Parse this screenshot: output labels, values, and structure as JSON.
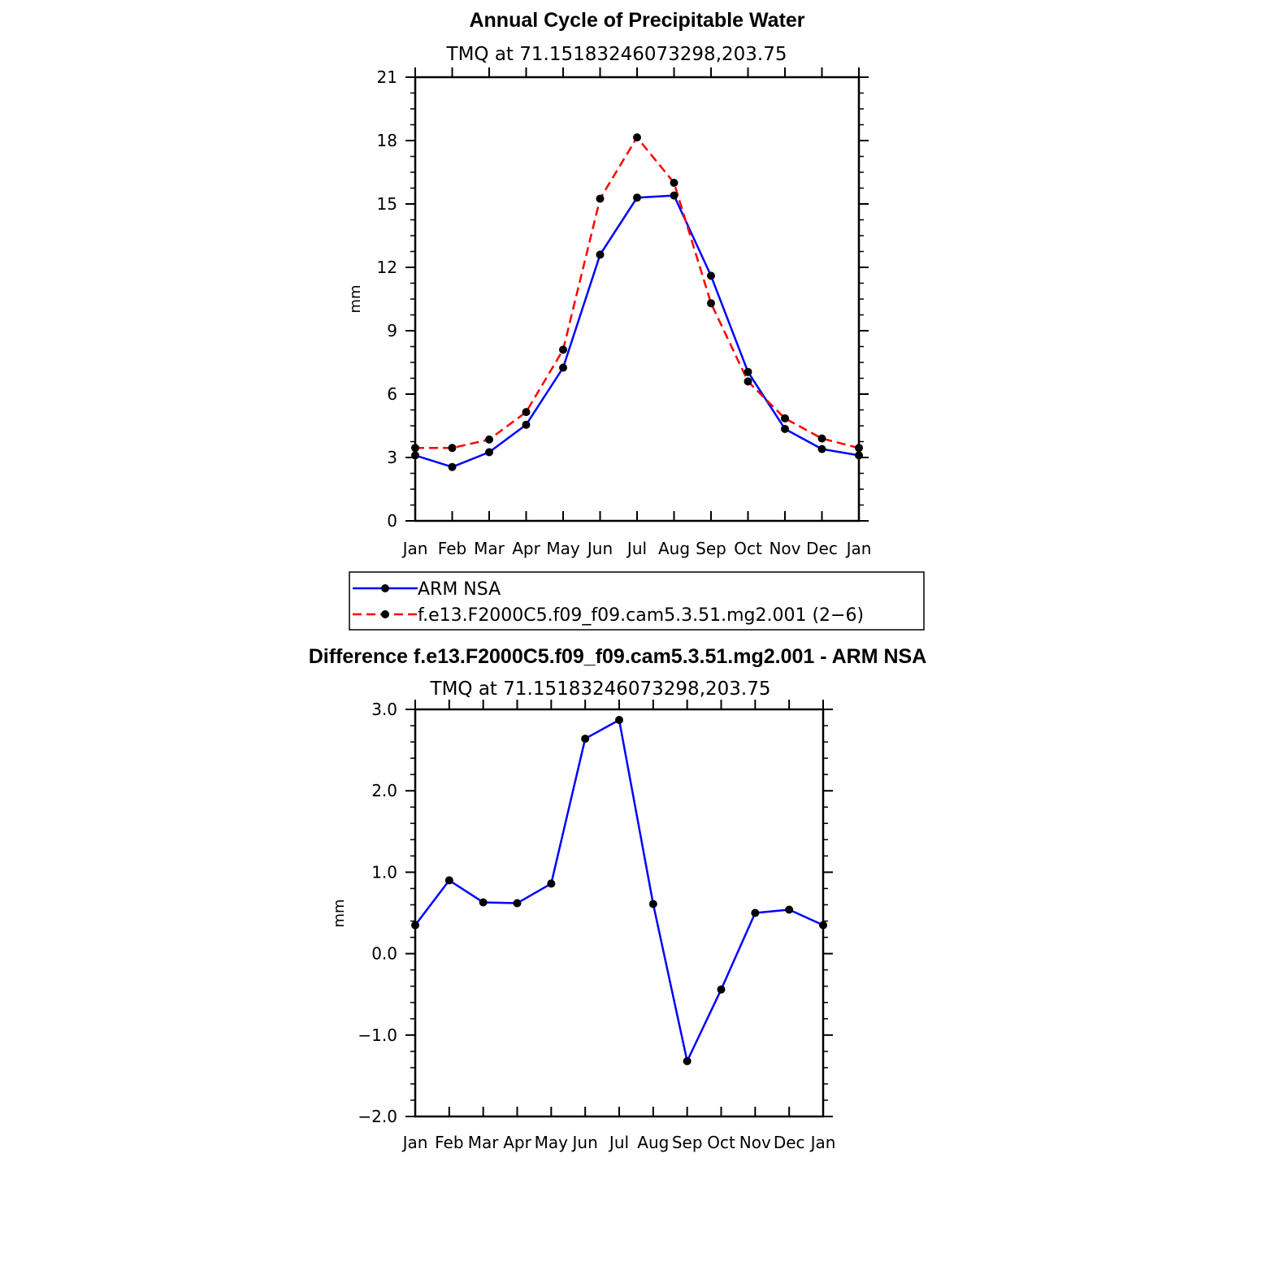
{
  "chart_data": [
    {
      "type": "line",
      "title": "Annual Cycle of Precipitable Water",
      "subtitle": "TMQ at 71.15183246073298,203.75",
      "xlabel": "",
      "ylabel": "mm",
      "categories": [
        "Jan",
        "Feb",
        "Mar",
        "Apr",
        "May",
        "Jun",
        "Jul",
        "Aug",
        "Sep",
        "Oct",
        "Nov",
        "Dec",
        "Jan"
      ],
      "ylim": [
        0,
        21
      ],
      "yticks": [
        "0",
        "3",
        "6",
        "9",
        "12",
        "15",
        "18",
        "21"
      ],
      "ytick_values": [
        0,
        3,
        6,
        9,
        12,
        15,
        18,
        21
      ],
      "legend_position": "below",
      "series": [
        {
          "name": "ARM NSA",
          "color": "#0000ff",
          "dash": "solid",
          "values": [
            3.1,
            2.55,
            3.25,
            4.55,
            7.25,
            12.6,
            15.3,
            15.4,
            11.6,
            7.05,
            4.35,
            3.4,
            3.1
          ]
        },
        {
          "name": "f.e13.F2000C5.f09_f09.cam5.3.51.mg2.001 (2−6)",
          "color": "#ff0000",
          "dash": "dashed",
          "values": [
            3.45,
            3.45,
            3.85,
            5.15,
            8.1,
            15.25,
            18.15,
            16.0,
            10.3,
            6.6,
            4.85,
            3.9,
            3.45
          ]
        }
      ]
    },
    {
      "type": "line",
      "title": "Difference f.e13.F2000C5.f09_f09.cam5.3.51.mg2.001 - ARM NSA",
      "subtitle": "TMQ at 71.15183246073298,203.75",
      "xlabel": "",
      "ylabel": "mm",
      "categories": [
        "Jan",
        "Feb",
        "Mar",
        "Apr",
        "May",
        "Jun",
        "Jul",
        "Aug",
        "Sep",
        "Oct",
        "Nov",
        "Dec",
        "Jan"
      ],
      "ylim": [
        -2,
        3
      ],
      "yticks": [
        "−2.0",
        "−1.0",
        "0.0",
        "1.0",
        "2.0",
        "3.0"
      ],
      "ytick_values": [
        -2,
        -1,
        0,
        1,
        2,
        3
      ],
      "series": [
        {
          "color": "#0000ff",
          "dash": "solid",
          "values": [
            0.35,
            0.9,
            0.63,
            0.62,
            0.86,
            2.64,
            2.87,
            0.61,
            -1.32,
            -0.44,
            0.5,
            0.54,
            0.35
          ]
        }
      ]
    }
  ]
}
